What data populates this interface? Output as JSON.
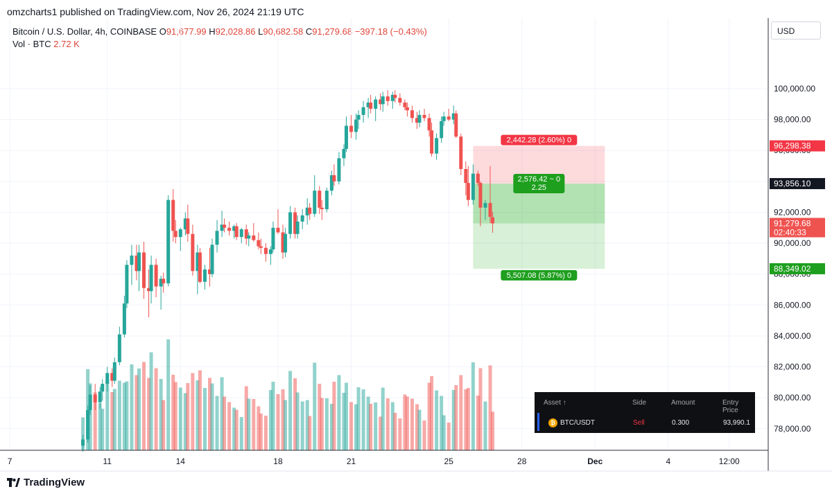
{
  "header": {
    "published_by": "omzcharts1 published on TradingView.com, Nov 26, 2024 21:19 UTC",
    "symbol": "Bitcoin / U.S. Dollar, 4h, COINBASE",
    "o_label": "O",
    "o_value": "91,677.99",
    "h_label": "H",
    "h_value": "92,028.86",
    "l_label": "L",
    "l_value": "90,682.58",
    "c_label": "C",
    "c_value": "91,279.68",
    "change": "−397.18 (−0.43%)",
    "vol_label": "Vol · BTC",
    "vol_value": "2.72 K"
  },
  "currency_button": "USD",
  "branding": "TradingView",
  "colors": {
    "up": "#26a69a",
    "down": "#ef5350",
    "stop_zone": "#f7c9c9",
    "target_zone": "#a6e3a0",
    "tp_label": "#1e9f1e",
    "sl_label": "#f23645"
  },
  "order_panel": {
    "headers": [
      "Asset",
      "Side",
      "Amount",
      "Entry Price"
    ],
    "sort_icon": "arrow-up-icon",
    "row": {
      "asset": "BTC/USDT",
      "side": "Sell",
      "amount": "0.300",
      "entry_price": "93,990.1"
    },
    "coin_icon": "bitcoin-icon"
  },
  "chart_data": {
    "type": "candlestick",
    "interval": "4h",
    "y_ticks": [
      "100,000.00",
      "98,000.00",
      "96,000.00",
      "94,000.00",
      "92,000.00",
      "90,000.00",
      "88,000.00",
      "86,000.00",
      "84,000.00",
      "82,000.00",
      "80,000.00",
      "78,000.00"
    ],
    "y_tick_values": [
      100000,
      98000,
      96000,
      94000,
      92000,
      90000,
      88000,
      86000,
      84000,
      82000,
      80000,
      78000
    ],
    "ylim": [
      76600,
      102600
    ],
    "x_ticks": [
      "7",
      "11",
      "14",
      "18",
      "21",
      "25",
      "28",
      "Dec",
      "4",
      "12:00"
    ],
    "x_tick_days": [
      7,
      11,
      14,
      18,
      21,
      25,
      28,
      31,
      34,
      36.5
    ],
    "xlim_days": [
      6.6,
      38.1
    ],
    "price_labels": {
      "stop": "96,298.38",
      "entry": "93,856.10",
      "current": "91,279.68",
      "countdown": "02:40:33",
      "target": "88,349.02"
    },
    "position": {
      "side": "short",
      "entry": 93856.1,
      "stop": 96298.38,
      "target": 88349.02,
      "start_day": 26.0,
      "end_day": 31.4,
      "stop_text": "2,442.28 (2.60%) 0",
      "pnl_text": "2,576.42 ~ 0",
      "ratio_text": "2.25",
      "target_text": "5,507.08 (5.87%) 0"
    },
    "candles": [
      {
        "day": 10.0,
        "o": 76900,
        "h": 77600,
        "l": 76500,
        "c": 77300
      },
      {
        "day": 10.2,
        "o": 77300,
        "h": 79500,
        "l": 77100,
        "c": 79200
      },
      {
        "day": 10.3,
        "o": 79200,
        "h": 80800,
        "l": 78900,
        "c": 80200
      },
      {
        "day": 10.5,
        "o": 80200,
        "h": 80900,
        "l": 79200,
        "c": 79700
      },
      {
        "day": 10.7,
        "o": 79700,
        "h": 80700,
        "l": 79300,
        "c": 80400
      },
      {
        "day": 10.8,
        "o": 80400,
        "h": 81200,
        "l": 79800,
        "c": 80900
      },
      {
        "day": 11.0,
        "o": 80900,
        "h": 82000,
        "l": 80400,
        "c": 81600
      },
      {
        "day": 11.2,
        "o": 81600,
        "h": 81900,
        "l": 80700,
        "c": 81100
      },
      {
        "day": 11.3,
        "o": 81100,
        "h": 82600,
        "l": 80900,
        "c": 82300
      },
      {
        "day": 11.5,
        "o": 82300,
        "h": 84600,
        "l": 82100,
        "c": 84100
      },
      {
        "day": 11.7,
        "o": 84100,
        "h": 86600,
        "l": 83900,
        "c": 86100
      },
      {
        "day": 11.8,
        "o": 86100,
        "h": 88900,
        "l": 85800,
        "c": 88600
      },
      {
        "day": 12.0,
        "o": 88600,
        "h": 89900,
        "l": 87300,
        "c": 89200
      },
      {
        "day": 12.2,
        "o": 89200,
        "h": 89900,
        "l": 87600,
        "c": 88200
      },
      {
        "day": 12.3,
        "o": 88200,
        "h": 89900,
        "l": 86900,
        "c": 89400
      },
      {
        "day": 12.5,
        "o": 89400,
        "h": 90100,
        "l": 86400,
        "c": 87100
      },
      {
        "day": 12.7,
        "o": 87100,
        "h": 88300,
        "l": 85200,
        "c": 86900
      },
      {
        "day": 12.8,
        "o": 86900,
        "h": 89200,
        "l": 86100,
        "c": 88600
      },
      {
        "day": 13.0,
        "o": 88600,
        "h": 89000,
        "l": 86500,
        "c": 87200
      },
      {
        "day": 13.2,
        "o": 87200,
        "h": 87900,
        "l": 85700,
        "c": 87700
      },
      {
        "day": 13.3,
        "o": 87700,
        "h": 88100,
        "l": 86800,
        "c": 87400
      },
      {
        "day": 13.5,
        "o": 87400,
        "h": 93100,
        "l": 87200,
        "c": 92800
      },
      {
        "day": 13.7,
        "o": 92800,
        "h": 93500,
        "l": 90100,
        "c": 90800
      },
      {
        "day": 13.8,
        "o": 90800,
        "h": 91500,
        "l": 90000,
        "c": 90400
      },
      {
        "day": 14.0,
        "o": 90400,
        "h": 91000,
        "l": 89500,
        "c": 90900
      },
      {
        "day": 14.2,
        "o": 90900,
        "h": 92000,
        "l": 90500,
        "c": 91600
      },
      {
        "day": 14.3,
        "o": 91600,
        "h": 92500,
        "l": 90100,
        "c": 90600
      },
      {
        "day": 14.5,
        "o": 90600,
        "h": 91200,
        "l": 87900,
        "c": 88200
      },
      {
        "day": 14.7,
        "o": 88200,
        "h": 89900,
        "l": 86700,
        "c": 89400
      },
      {
        "day": 14.8,
        "o": 89400,
        "h": 89700,
        "l": 87400,
        "c": 87500
      },
      {
        "day": 15.0,
        "o": 87500,
        "h": 88600,
        "l": 87000,
        "c": 88300
      },
      {
        "day": 15.2,
        "o": 88300,
        "h": 89700,
        "l": 87200,
        "c": 88000
      },
      {
        "day": 15.3,
        "o": 88000,
        "h": 90300,
        "l": 87800,
        "c": 89900
      },
      {
        "day": 15.5,
        "o": 89900,
        "h": 91500,
        "l": 89400,
        "c": 90800
      },
      {
        "day": 15.7,
        "o": 90800,
        "h": 92100,
        "l": 90400,
        "c": 91200
      },
      {
        "day": 15.8,
        "o": 91200,
        "h": 91600,
        "l": 90700,
        "c": 91000
      },
      {
        "day": 16.0,
        "o": 91000,
        "h": 91400,
        "l": 90500,
        "c": 90800
      },
      {
        "day": 16.2,
        "o": 90800,
        "h": 91200,
        "l": 90300,
        "c": 91100
      },
      {
        "day": 16.3,
        "o": 91100,
        "h": 91300,
        "l": 90200,
        "c": 90400
      },
      {
        "day": 16.5,
        "o": 90400,
        "h": 91000,
        "l": 90000,
        "c": 90900
      },
      {
        "day": 16.7,
        "o": 90900,
        "h": 91200,
        "l": 89900,
        "c": 90300
      },
      {
        "day": 16.8,
        "o": 90300,
        "h": 90700,
        "l": 89800,
        "c": 90500
      },
      {
        "day": 17.0,
        "o": 90500,
        "h": 91300,
        "l": 90100,
        "c": 90200
      },
      {
        "day": 17.2,
        "o": 90200,
        "h": 90700,
        "l": 89600,
        "c": 89800
      },
      {
        "day": 17.3,
        "o": 89800,
        "h": 90300,
        "l": 89300,
        "c": 89700
      },
      {
        "day": 17.5,
        "o": 89700,
        "h": 90000,
        "l": 88800,
        "c": 89300
      },
      {
        "day": 17.7,
        "o": 89300,
        "h": 89800,
        "l": 88600,
        "c": 89600
      },
      {
        "day": 17.8,
        "o": 89600,
        "h": 91400,
        "l": 89400,
        "c": 91000
      },
      {
        "day": 18.0,
        "o": 91000,
        "h": 92200,
        "l": 90600,
        "c": 90700
      },
      {
        "day": 18.2,
        "o": 90700,
        "h": 91200,
        "l": 89000,
        "c": 89400
      },
      {
        "day": 18.3,
        "o": 89400,
        "h": 91000,
        "l": 89100,
        "c": 90600
      },
      {
        "day": 18.5,
        "o": 90600,
        "h": 92400,
        "l": 90300,
        "c": 92000
      },
      {
        "day": 18.7,
        "o": 92000,
        "h": 92300,
        "l": 90300,
        "c": 90600
      },
      {
        "day": 18.8,
        "o": 90600,
        "h": 91800,
        "l": 90300,
        "c": 91400
      },
      {
        "day": 19.0,
        "o": 91400,
        "h": 92200,
        "l": 90900,
        "c": 91800
      },
      {
        "day": 19.2,
        "o": 91800,
        "h": 92900,
        "l": 91200,
        "c": 92300
      },
      {
        "day": 19.3,
        "o": 92300,
        "h": 92600,
        "l": 91500,
        "c": 91900
      },
      {
        "day": 19.5,
        "o": 91900,
        "h": 94400,
        "l": 91700,
        "c": 93400
      },
      {
        "day": 19.7,
        "o": 93400,
        "h": 93700,
        "l": 91900,
        "c": 92300
      },
      {
        "day": 19.8,
        "o": 92300,
        "h": 92800,
        "l": 91500,
        "c": 92200
      },
      {
        "day": 20.0,
        "o": 92200,
        "h": 93600,
        "l": 92000,
        "c": 93400
      },
      {
        "day": 20.2,
        "o": 93400,
        "h": 94700,
        "l": 93100,
        "c": 94400
      },
      {
        "day": 20.3,
        "o": 94400,
        "h": 95100,
        "l": 93700,
        "c": 94000
      },
      {
        "day": 20.5,
        "o": 94000,
        "h": 95900,
        "l": 93800,
        "c": 95500
      },
      {
        "day": 20.7,
        "o": 95500,
        "h": 96400,
        "l": 95000,
        "c": 96100
      },
      {
        "day": 20.8,
        "o": 96100,
        "h": 98200,
        "l": 95900,
        "c": 97600
      },
      {
        "day": 21.0,
        "o": 97600,
        "h": 98300,
        "l": 96800,
        "c": 97200
      },
      {
        "day": 21.2,
        "o": 97200,
        "h": 98400,
        "l": 96700,
        "c": 98000
      },
      {
        "day": 21.3,
        "o": 98000,
        "h": 98600,
        "l": 97400,
        "c": 98300
      },
      {
        "day": 21.5,
        "o": 98300,
        "h": 99200,
        "l": 97800,
        "c": 98800
      },
      {
        "day": 21.7,
        "o": 98800,
        "h": 99400,
        "l": 98100,
        "c": 99100
      },
      {
        "day": 21.8,
        "o": 99100,
        "h": 99600,
        "l": 98400,
        "c": 98700
      },
      {
        "day": 22.0,
        "o": 98700,
        "h": 99500,
        "l": 97900,
        "c": 99300
      },
      {
        "day": 22.2,
        "o": 99300,
        "h": 99700,
        "l": 98600,
        "c": 99000
      },
      {
        "day": 22.3,
        "o": 99000,
        "h": 99800,
        "l": 98500,
        "c": 99500
      },
      {
        "day": 22.5,
        "o": 99500,
        "h": 99900,
        "l": 98900,
        "c": 99200
      },
      {
        "day": 22.7,
        "o": 99200,
        "h": 99800,
        "l": 98700,
        "c": 99600
      },
      {
        "day": 22.8,
        "o": 99600,
        "h": 99900,
        "l": 99100,
        "c": 99400
      },
      {
        "day": 23.0,
        "o": 99400,
        "h": 99700,
        "l": 98900,
        "c": 99100
      },
      {
        "day": 23.2,
        "o": 99100,
        "h": 99300,
        "l": 98600,
        "c": 98800
      },
      {
        "day": 23.3,
        "o": 98800,
        "h": 99100,
        "l": 98200,
        "c": 98600
      },
      {
        "day": 23.5,
        "o": 98600,
        "h": 98900,
        "l": 97800,
        "c": 98100
      },
      {
        "day": 23.7,
        "o": 98100,
        "h": 98500,
        "l": 97400,
        "c": 97800
      },
      {
        "day": 23.8,
        "o": 97800,
        "h": 98600,
        "l": 97500,
        "c": 98300
      },
      {
        "day": 24.0,
        "o": 98300,
        "h": 98700,
        "l": 97900,
        "c": 98100
      },
      {
        "day": 24.2,
        "o": 98100,
        "h": 98400,
        "l": 96900,
        "c": 97300
      },
      {
        "day": 24.3,
        "o": 97300,
        "h": 97800,
        "l": 95600,
        "c": 95800
      },
      {
        "day": 24.5,
        "o": 95800,
        "h": 97100,
        "l": 95400,
        "c": 96800
      },
      {
        "day": 24.7,
        "o": 96800,
        "h": 98200,
        "l": 96500,
        "c": 97900
      },
      {
        "day": 24.8,
        "o": 97900,
        "h": 98500,
        "l": 97600,
        "c": 98200
      },
      {
        "day": 25.0,
        "o": 98200,
        "h": 98700,
        "l": 97900,
        "c": 98000
      },
      {
        "day": 25.2,
        "o": 98000,
        "h": 98900,
        "l": 97700,
        "c": 98400
      },
      {
        "day": 25.3,
        "o": 98400,
        "h": 98600,
        "l": 96800,
        "c": 96900
      },
      {
        "day": 25.5,
        "o": 96900,
        "h": 97100,
        "l": 94400,
        "c": 94800
      },
      {
        "day": 25.7,
        "o": 94800,
        "h": 95300,
        "l": 93100,
        "c": 93900
      },
      {
        "day": 25.8,
        "o": 93900,
        "h": 95000,
        "l": 92400,
        "c": 92800
      },
      {
        "day": 26.0,
        "o": 92800,
        "h": 95100,
        "l": 92500,
        "c": 94500
      },
      {
        "day": 26.2,
        "o": 94500,
        "h": 94700,
        "l": 93700,
        "c": 93900
      },
      {
        "day": 26.3,
        "o": 93900,
        "h": 94000,
        "l": 91100,
        "c": 92300
      },
      {
        "day": 26.5,
        "o": 92300,
        "h": 92800,
        "l": 91500,
        "c": 92600
      },
      {
        "day": 26.7,
        "o": 92600,
        "h": 95000,
        "l": 91300,
        "c": 91700
      },
      {
        "day": 26.8,
        "o": 91677.99,
        "h": 92028.86,
        "l": 90682.58,
        "c": 91279.68
      }
    ]
  }
}
